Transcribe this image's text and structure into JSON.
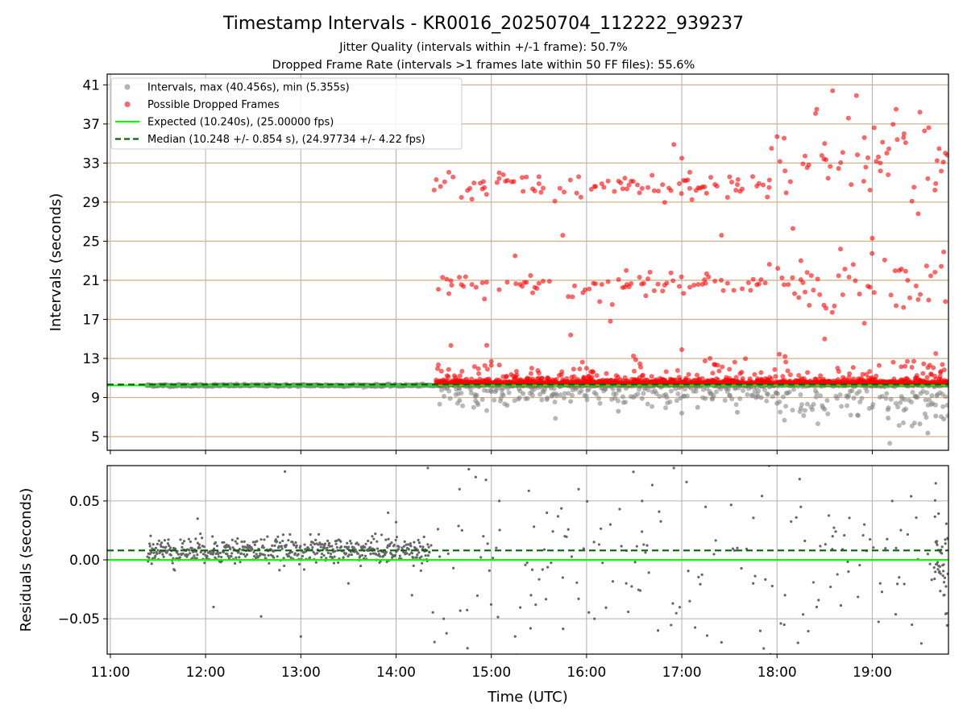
{
  "chart_data": [
    {
      "type": "scatter",
      "title": "Timestamp Intervals - KR0016_20250704_112222_939237",
      "subtitle_lines": [
        "Jitter Quality (intervals within +/-1 frame): 50.7%",
        "Dropped Frame Rate (intervals >1 frames late within 50 FF files): 55.6%"
      ],
      "xlabel": "",
      "ylabel": "Intervals (seconds)",
      "x_unit": "time (UTC, hours)",
      "xlim": [
        "10:58",
        "19:48"
      ],
      "ylim": [
        3.6,
        42.1
      ],
      "yticks": [
        5,
        9,
        13,
        17,
        21,
        25,
        29,
        33,
        37,
        41
      ],
      "xticks": [
        "11:00",
        "12:00",
        "13:00",
        "14:00",
        "15:00",
        "16:00",
        "17:00",
        "18:00",
        "19:00"
      ],
      "hlines_tan": [
        5,
        9,
        13,
        17,
        21,
        25,
        29,
        33,
        37,
        41
      ],
      "grid": true,
      "legend_position": "top-left",
      "series": [
        {
          "name": "Intervals, max (40.456s), min (5.355s)",
          "color": "#808080",
          "kind": "points",
          "description_range": {
            "x_start": "11:23",
            "x_end": "19:48",
            "main_y": 10.24
          },
          "points": [
            [
              "11:23",
              10.24
            ],
            [
              "11:45",
              10.25
            ],
            [
              "12:10",
              10.26
            ],
            [
              "12:40",
              10.24
            ],
            [
              "13:10",
              10.25
            ],
            [
              "13:40",
              10.24
            ],
            [
              "14:10",
              10.25
            ],
            [
              "14:40",
              8.7
            ],
            [
              "14:50",
              9.1
            ],
            [
              "15:00",
              9.6
            ],
            [
              "15:10",
              8.2
            ],
            [
              "15:20",
              9.4
            ],
            [
              "15:35",
              8.8
            ],
            [
              "15:50",
              8.6
            ],
            [
              "16:05",
              9.5
            ],
            [
              "16:20",
              7.6
            ],
            [
              "16:35",
              8.9
            ],
            [
              "16:50",
              9.3
            ],
            [
              "17:00",
              7.4
            ],
            [
              "17:10",
              8.0
            ],
            [
              "17:20",
              9.2
            ],
            [
              "17:35",
              7.5
            ],
            [
              "17:50",
              9.0
            ],
            [
              "18:00",
              8.4
            ],
            [
              "18:15",
              7.9
            ],
            [
              "18:30",
              7.8
            ],
            [
              "18:45",
              9.2
            ],
            [
              "19:00",
              8.0
            ],
            [
              "19:10",
              6.9
            ],
            [
              "19:20",
              7.7
            ],
            [
              "19:30",
              6.3
            ],
            [
              "19:35",
              5.36
            ],
            [
              "19:40",
              7.1
            ],
            [
              "19:45",
              6.8
            ]
          ]
        },
        {
          "name": "Possible Dropped Frames",
          "color": "#ff0000",
          "kind": "points",
          "points": [
            [
              "14:28",
              30.6
            ],
            [
              "14:35",
              20.5
            ],
            [
              "14:45",
              30.2
            ],
            [
              "14:55",
              31.1
            ],
            [
              "15:05",
              32.0
            ],
            [
              "15:10",
              20.8
            ],
            [
              "15:15",
              23.5
            ],
            [
              "15:20",
              30.1
            ],
            [
              "15:30",
              31.6
            ],
            [
              "15:40",
              29.1
            ],
            [
              "15:45",
              25.6
            ],
            [
              "15:50",
              15.4
            ],
            [
              "15:55",
              31.6
            ],
            [
              "16:05",
              30.6
            ],
            [
              "16:15",
              16.8
            ],
            [
              "16:25",
              22.0
            ],
            [
              "16:35",
              30.4
            ],
            [
              "16:45",
              20.6
            ],
            [
              "16:55",
              34.9
            ],
            [
              "17:00",
              33.5
            ],
            [
              "17:05",
              30.4
            ],
            [
              "17:15",
              20.7
            ],
            [
              "17:25",
              25.6
            ],
            [
              "17:35",
              30.8
            ],
            [
              "17:45",
              21.1
            ],
            [
              "17:55",
              30.5
            ],
            [
              "18:00",
              35.7
            ],
            [
              "18:05",
              32.2
            ],
            [
              "18:10",
              26.3
            ],
            [
              "18:15",
              23.0
            ],
            [
              "18:20",
              32.8
            ],
            [
              "18:25",
              38.5
            ],
            [
              "18:30",
              35.0
            ],
            [
              "18:35",
              40.4
            ],
            [
              "18:40",
              24.2
            ],
            [
              "18:45",
              37.6
            ],
            [
              "18:50",
              39.9
            ],
            [
              "18:55",
              35.6
            ],
            [
              "19:00",
              25.3
            ],
            [
              "19:05",
              33.0
            ],
            [
              "19:10",
              31.8
            ],
            [
              "19:15",
              38.5
            ],
            [
              "19:20",
              36.0
            ],
            [
              "19:25",
              29.1
            ],
            [
              "19:30",
              38.2
            ],
            [
              "19:35",
              31.4
            ],
            [
              "19:40",
              30.9
            ],
            [
              "19:45",
              23.9
            ],
            [
              "15:00",
              12.7
            ],
            [
              "15:30",
              11.5
            ],
            [
              "16:00",
              12.0
            ],
            [
              "16:30",
              11.7
            ],
            [
              "17:00",
              13.9
            ],
            [
              "17:30",
              11.9
            ],
            [
              "18:05",
              13.2
            ],
            [
              "18:30",
              15.0
            ],
            [
              "18:55",
              16.6
            ],
            [
              "19:15",
              18.4
            ],
            [
              "19:40",
              13.5
            ],
            [
              "14:30",
              10.4
            ],
            [
              "15:00",
              10.5
            ],
            [
              "15:30",
              10.4
            ],
            [
              "16:00",
              10.3
            ],
            [
              "16:30",
              10.4
            ],
            [
              "17:00",
              10.4
            ],
            [
              "17:30",
              10.3
            ],
            [
              "18:00",
              10.4
            ],
            [
              "18:30",
              10.5
            ],
            [
              "19:00",
              10.4
            ],
            [
              "19:30",
              10.4
            ],
            [
              "19:48",
              10.3
            ]
          ]
        },
        {
          "name": "Expected (10.240s), (25.00000 fps)",
          "color": "#00ff00",
          "kind": "hline",
          "y": 10.24
        },
        {
          "name": "Median (10.248 +/- 0.854 s), (24.97734 +/- 4.22 fps)",
          "color": "#006400",
          "kind": "hline-dashed",
          "y": 10.248
        }
      ]
    },
    {
      "type": "scatter",
      "title": "",
      "xlabel": "Time (UTC)",
      "ylabel": "Residuals (seconds)",
      "xlim": [
        "10:58",
        "19:48"
      ],
      "ylim": [
        -0.08,
        0.08
      ],
      "yticks": [
        -0.05,
        0.0,
        0.05
      ],
      "ytick_labels": [
        "−0.05",
        "0.00",
        "0.05"
      ],
      "xticks": [
        "11:00",
        "12:00",
        "13:00",
        "14:00",
        "15:00",
        "16:00",
        "17:00",
        "18:00",
        "19:00"
      ],
      "grid": true,
      "series": [
        {
          "name": "",
          "color": "#666666",
          "kind": "points",
          "points": [
            [
              "11:25",
              0.005
            ],
            [
              "11:40",
              -0.008
            ],
            [
              "11:55",
              0.035
            ],
            [
              "12:05",
              -0.04
            ],
            [
              "12:20",
              0.008
            ],
            [
              "12:35",
              -0.048
            ],
            [
              "12:50",
              0.075
            ],
            [
              "13:00",
              -0.065
            ],
            [
              "13:15",
              0.01
            ],
            [
              "13:30",
              -0.02
            ],
            [
              "13:45",
              0.02
            ],
            [
              "13:55",
              0.04
            ],
            [
              "14:00",
              0.032
            ],
            [
              "14:10",
              -0.03
            ],
            [
              "14:20",
              0.078
            ],
            [
              "14:30",
              -0.05
            ],
            [
              "14:40",
              0.06
            ],
            [
              "14:45",
              -0.075
            ],
            [
              "14:55",
              0.02
            ],
            [
              "15:05",
              0.05
            ],
            [
              "15:15",
              -0.065
            ],
            [
              "15:25",
              -0.03
            ],
            [
              "15:35",
              0.04
            ],
            [
              "15:45",
              -0.015
            ],
            [
              "15:55",
              0.06
            ],
            [
              "16:05",
              -0.05
            ],
            [
              "16:15",
              0.03
            ],
            [
              "16:25",
              -0.02
            ],
            [
              "16:35",
              0.05
            ],
            [
              "16:45",
              -0.06
            ],
            [
              "16:55",
              0.078
            ],
            [
              "17:05",
              -0.035
            ],
            [
              "17:15",
              0.045
            ],
            [
              "17:25",
              -0.07
            ],
            [
              "17:35",
              0.01
            ],
            [
              "17:45",
              -0.02
            ],
            [
              "17:55",
              0.08
            ],
            [
              "18:05",
              -0.03
            ],
            [
              "18:15",
              0.045
            ],
            [
              "18:25",
              -0.04
            ],
            [
              "18:35",
              0.02
            ],
            [
              "18:45",
              -0.01
            ],
            [
              "18:55",
              0.03
            ],
            [
              "19:05",
              -0.02
            ],
            [
              "19:15",
              0.01
            ],
            [
              "19:25",
              -0.055
            ],
            [
              "19:35",
              0.005
            ],
            [
              "19:40",
              0.065
            ],
            [
              "19:45",
              -0.03
            ]
          ]
        },
        {
          "name": "",
          "color": "#00ff00",
          "kind": "hline",
          "y": 0.0
        },
        {
          "name": "",
          "color": "#006400",
          "kind": "hline-dashed",
          "y": 0.008
        }
      ]
    }
  ],
  "colors": {
    "grid": "#b0b0b0",
    "tan_line": "#d2b48c",
    "axis": "#000000"
  }
}
